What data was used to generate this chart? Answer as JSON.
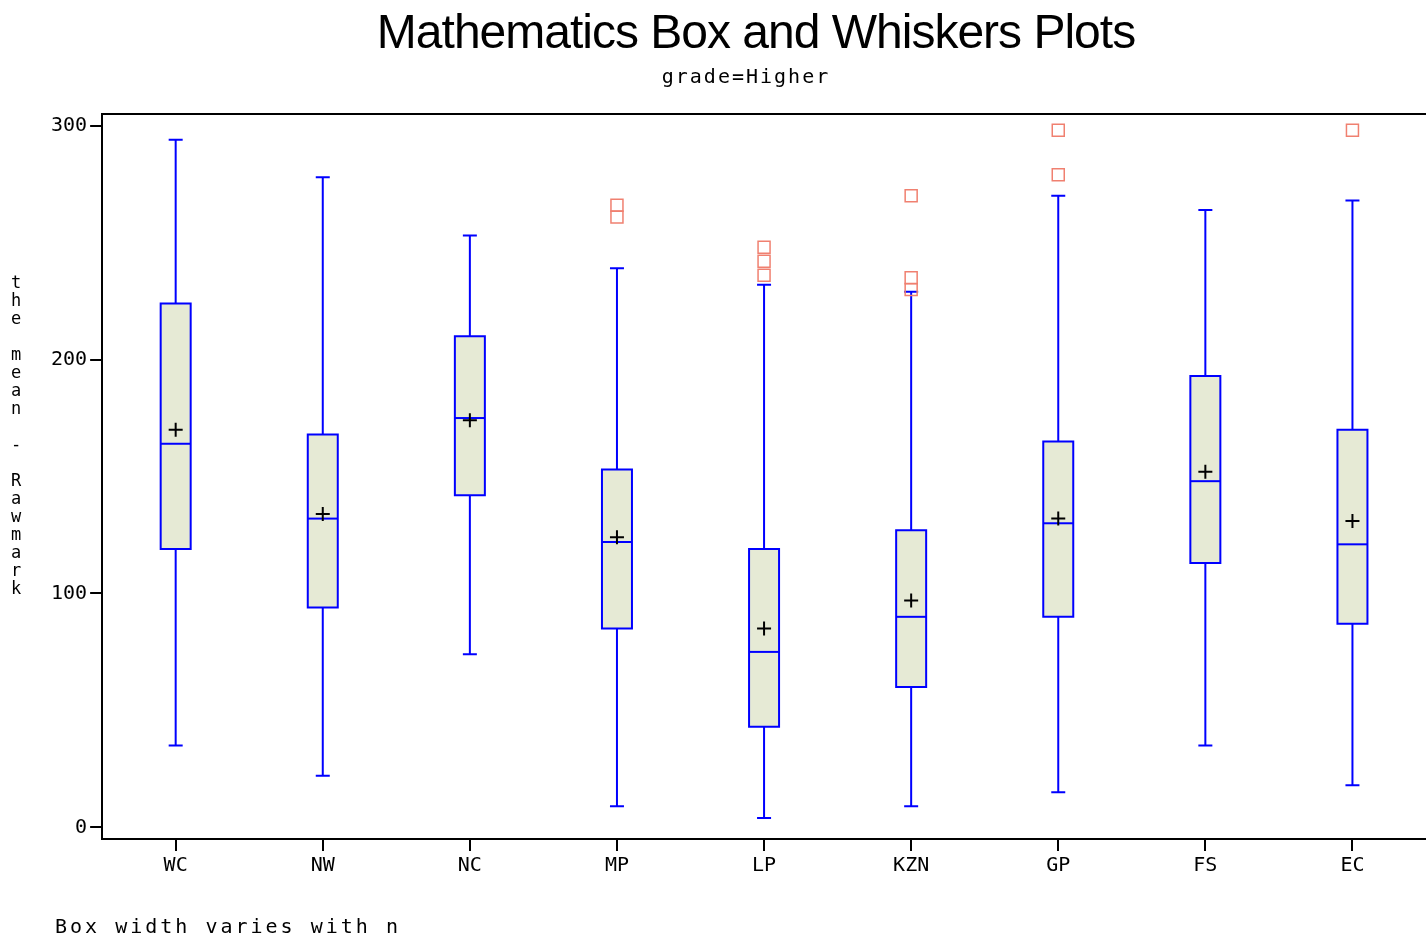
{
  "chart_data": {
    "type": "box",
    "title": "Mathematics Box and Whiskers Plots",
    "subtitle": "grade=Higher",
    "ylabel": "the mean - Rawmark",
    "annotations": [
      "Box width varies with n"
    ],
    "categories": [
      "WC",
      "NW",
      "NC",
      "MP",
      "LP",
      "KZN",
      "GP",
      "FS",
      "EC"
    ],
    "series": [
      {
        "color": "#e6ead5",
        "boxes": [
          {
            "low": 35,
            "q1": 119,
            "median": 164,
            "q3": 224,
            "high": 294,
            "mean": 170
          },
          {
            "low": 22,
            "q1": 94,
            "median": 132,
            "q3": 168,
            "high": 278,
            "mean": 134
          },
          {
            "low": 74,
            "q1": 142,
            "median": 175,
            "q3": 210,
            "high": 253,
            "mean": 174
          },
          {
            "low": 9,
            "q1": 85,
            "median": 122,
            "q3": 153,
            "high": 239,
            "mean": 124,
            "outliers": [
              261,
              266
            ]
          },
          {
            "low": 4,
            "q1": 43,
            "median": 75,
            "q3": 119,
            "high": 232,
            "mean": 85,
            "outliers": [
              236,
              242,
              248
            ]
          },
          {
            "low": 9,
            "q1": 60,
            "median": 90,
            "q3": 127,
            "high": 229,
            "mean": 97,
            "outliers": [
              230,
              235,
              270
            ]
          },
          {
            "low": 15,
            "q1": 90,
            "median": 130,
            "q3": 165,
            "high": 270,
            "mean": 132,
            "outliers": [
              279,
              298
            ]
          },
          {
            "low": 35,
            "q1": 113,
            "median": 148,
            "q3": 193,
            "high": 264,
            "mean": 152
          },
          {
            "low": 18,
            "q1": 87,
            "median": 121,
            "q3": 170,
            "high": 268,
            "mean": 131,
            "outliers": [
              298
            ]
          }
        ]
      }
    ],
    "ylim": [
      -5,
      305
    ],
    "yticks": [
      0,
      100,
      200,
      300
    ]
  }
}
